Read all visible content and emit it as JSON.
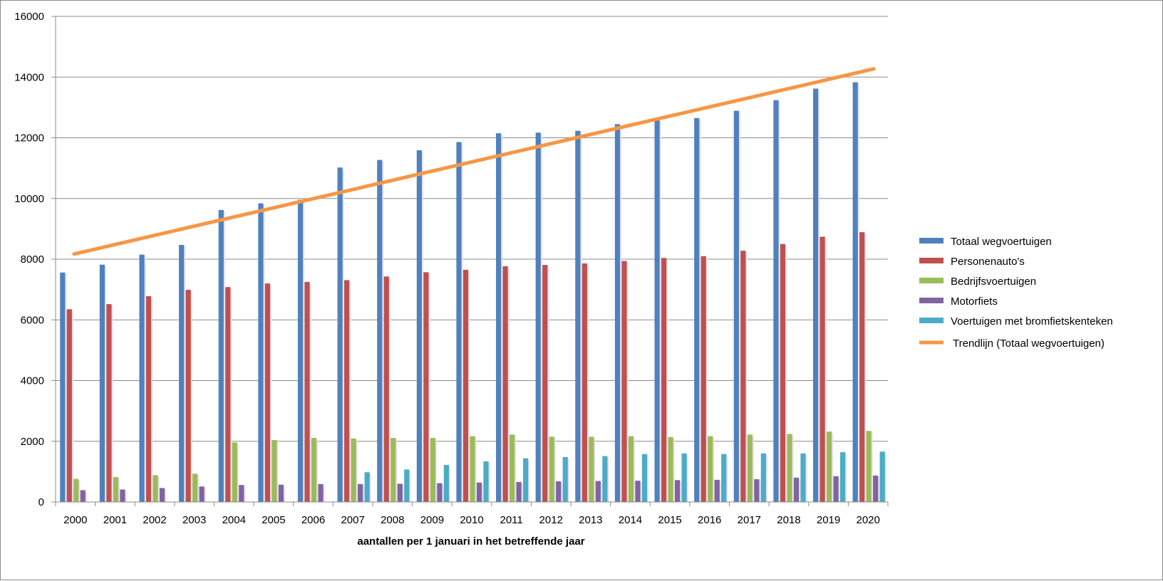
{
  "chart_data": {
    "type": "bar",
    "title": "",
    "xlabel": "aantallen per 1 januari in het betreffende jaar",
    "ylabel": "",
    "ylim": [
      0,
      16000
    ],
    "yticks": [
      0,
      2000,
      4000,
      6000,
      8000,
      10000,
      12000,
      14000,
      16000
    ],
    "grid": true,
    "legend_position": "right",
    "categories": [
      "2000",
      "2001",
      "2002",
      "2003",
      "2004",
      "2005",
      "2006",
      "2007",
      "2008",
      "2009",
      "2010",
      "2011",
      "2012",
      "2013",
      "2014",
      "2015",
      "2016",
      "2017",
      "2018",
      "2019",
      "2020"
    ],
    "series": [
      {
        "name": "Totaal wegvoertuigen",
        "color": "#4f81bd",
        "values": [
          7560,
          7820,
          8150,
          8470,
          9620,
          9840,
          9960,
          11020,
          11270,
          11590,
          11860,
          12150,
          12170,
          12230,
          12450,
          12590,
          12650,
          12890,
          13240,
          13620,
          13830
        ]
      },
      {
        "name": "Personenauto's",
        "color": "#c0504d",
        "values": [
          6350,
          6520,
          6780,
          6990,
          7080,
          7200,
          7250,
          7310,
          7430,
          7570,
          7650,
          7770,
          7810,
          7860,
          7940,
          8040,
          8100,
          8280,
          8500,
          8740,
          8890
        ]
      },
      {
        "name": "Bedrijfsvoertuigen",
        "color": "#9bbb59",
        "values": [
          760,
          820,
          880,
          930,
          1960,
          2040,
          2110,
          2090,
          2110,
          2110,
          2170,
          2220,
          2150,
          2150,
          2170,
          2140,
          2170,
          2220,
          2240,
          2320,
          2340
        ]
      },
      {
        "name": "Motorfiets",
        "color": "#8064a2",
        "values": [
          390,
          410,
          460,
          510,
          560,
          570,
          590,
          590,
          600,
          620,
          640,
          660,
          680,
          690,
          700,
          720,
          730,
          750,
          800,
          850,
          870
        ]
      },
      {
        "name": "Voertuigen met bromfietskenteken",
        "color": "#4bacc6",
        "values": [
          0,
          0,
          0,
          0,
          0,
          0,
          0,
          980,
          1070,
          1220,
          1340,
          1440,
          1480,
          1510,
          1580,
          1600,
          1580,
          1600,
          1600,
          1640,
          1660
        ]
      }
    ],
    "trendline": {
      "name": "Trendlijn  (Totaal wegvoertuigen)",
      "color": "#f79646",
      "start": 8170,
      "end": 14270
    }
  }
}
